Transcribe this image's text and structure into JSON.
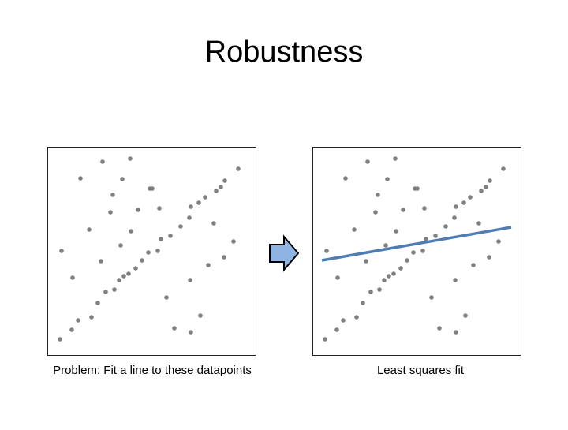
{
  "title": "Robustness",
  "panels": [
    {
      "caption": "Problem: Fit a line to these datapoints"
    },
    {
      "caption": "Least squares fit"
    }
  ]
}
